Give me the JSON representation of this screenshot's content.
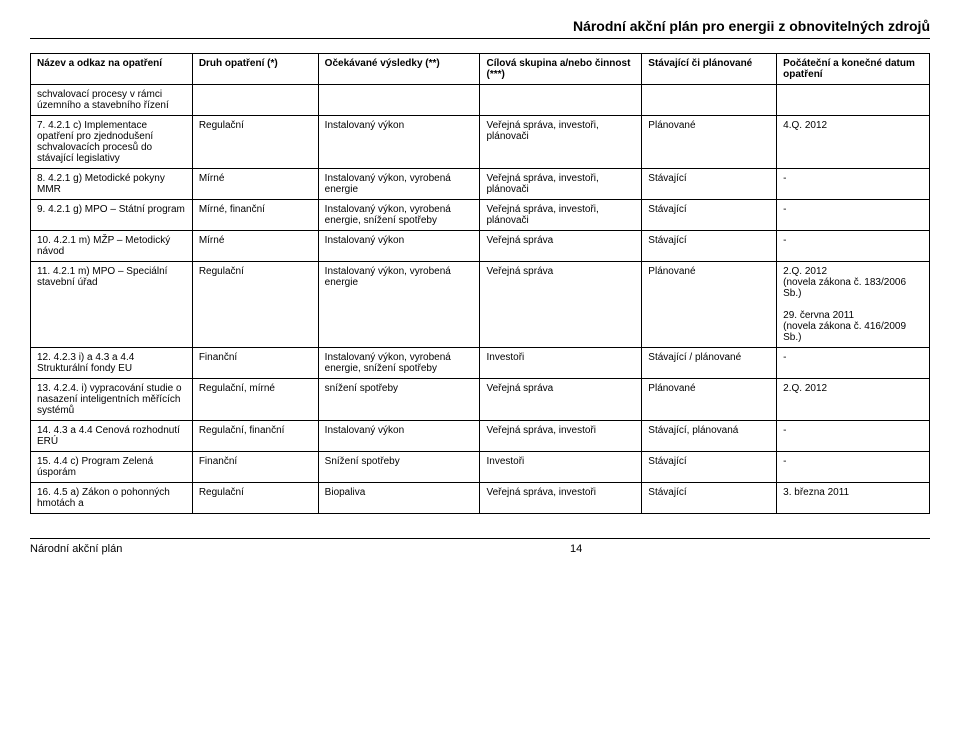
{
  "doc": {
    "header_title": "Národní akční plán pro energii z obnovitelných zdrojů",
    "footer_left": "Národní akční plán",
    "footer_page": "14"
  },
  "table": {
    "headers": [
      "Název a odkaz na opatření",
      "Druh opatření (*)",
      "Očekávané výsledky (**)",
      "Cílová skupina a/nebo činnost (***)",
      "Stávající či plánované",
      "Počáteční a konečné datum opatření"
    ],
    "rows": [
      [
        "schvalovací procesy v rámci územního a stavebního řízení",
        "",
        "",
        "",
        "",
        ""
      ],
      [
        "7. 4.2.1 c) Implementace opatření pro zjednodušení schvalovacích procesů do stávající legislativy",
        "Regulační",
        "Instalovaný výkon",
        "Veřejná správa, investoři, plánovači",
        "Plánované",
        "4.Q. 2012"
      ],
      [
        "8. 4.2.1 g) Metodické pokyny MMR",
        "Mírné",
        "Instalovaný výkon, vyrobená energie",
        "Veřejná správa, investoři, plánovači",
        "Stávající",
        "-"
      ],
      [
        "9. 4.2.1 g) MPO – Státní program",
        "Mírné, finanční",
        "Instalovaný výkon, vyrobená energie, snížení spotřeby",
        "Veřejná správa, investoři, plánovači",
        "Stávající",
        "-"
      ],
      [
        "10. 4.2.1 m) MŽP – Metodický návod",
        "Mírné",
        "Instalovaný výkon",
        "Veřejná správa",
        "Stávající",
        "-"
      ],
      [
        "11. 4.2.1 m) MPO – Speciální stavební úřad",
        "Regulační",
        "Instalovaný výkon, vyrobená energie",
        "Veřejná správa",
        "Plánované",
        "2.Q. 2012\n(novela zákona č. 183/2006 Sb.)\n\n29. června 2011\n(novela zákona č. 416/2009 Sb.)"
      ],
      [
        "12. 4.2.3 i) a 4.3 a 4.4 Strukturální fondy EU",
        "Finanční",
        "Instalovaný výkon, vyrobená energie, snížení spotřeby",
        "Investoři",
        "Stávající / plánované",
        "-"
      ],
      [
        "13. 4.2.4. i) vypracování studie o nasazení inteligentních měřících systémů",
        "Regulační, mírné",
        "snížení spotřeby",
        "Veřejná správa",
        "Plánované",
        "2.Q. 2012"
      ],
      [
        "14. 4.3 a 4.4 Cenová rozhodnutí ERÚ",
        "Regulační, finanční",
        "Instalovaný výkon",
        "Veřejná správa, investoři",
        "Stávající, plánovaná",
        "-"
      ],
      [
        "15. 4.4 c) Program Zelená úsporám",
        "Finanční",
        "Snížení spotřeby",
        "Investoři",
        "Stávající",
        "-"
      ],
      [
        "16. 4.5 a) Zákon o pohonných hmotách a",
        "Regulační",
        "Biopaliva",
        "Veřejná správa, investoři",
        "Stávající",
        "3. března 2011"
      ]
    ]
  }
}
